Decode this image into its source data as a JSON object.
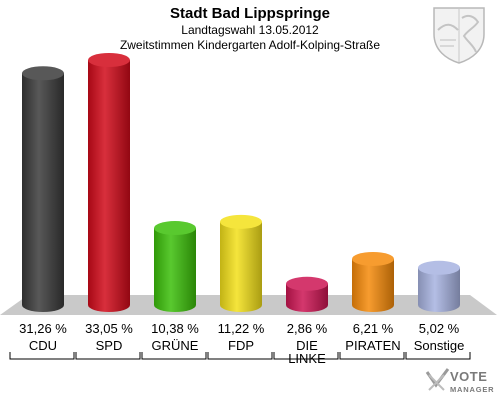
{
  "title": "Stadt Bad Lippspringe",
  "subtitle": "Landtagswahl 13.05.2012",
  "subtitle2": "Zweitstimmen Kindergarten Adolf-Kolping-Straße",
  "logo_text": "VOTE MANAGER",
  "chart_data": {
    "type": "bar",
    "categories": [
      "CDU",
      "SPD",
      "GRÜNE",
      "FDP",
      "DIE LINKE",
      "PIRATEN",
      "Sonstige"
    ],
    "values": [
      31.26,
      33.05,
      10.38,
      11.22,
      2.86,
      6.21,
      5.02
    ],
    "value_labels": [
      "31,26 %",
      "33,05 %",
      "10,38 %",
      "11,22 %",
      "2,86 %",
      "6,21 %",
      "5,02 %"
    ],
    "colors": [
      "#3a3a3a",
      "#d10a1a",
      "#3cbf0a",
      "#f3e01a",
      "#cc1553",
      "#f68a0a",
      "#a7b3e0"
    ],
    "ylim": [
      0,
      33.05
    ],
    "legend": "none",
    "grid": false
  }
}
